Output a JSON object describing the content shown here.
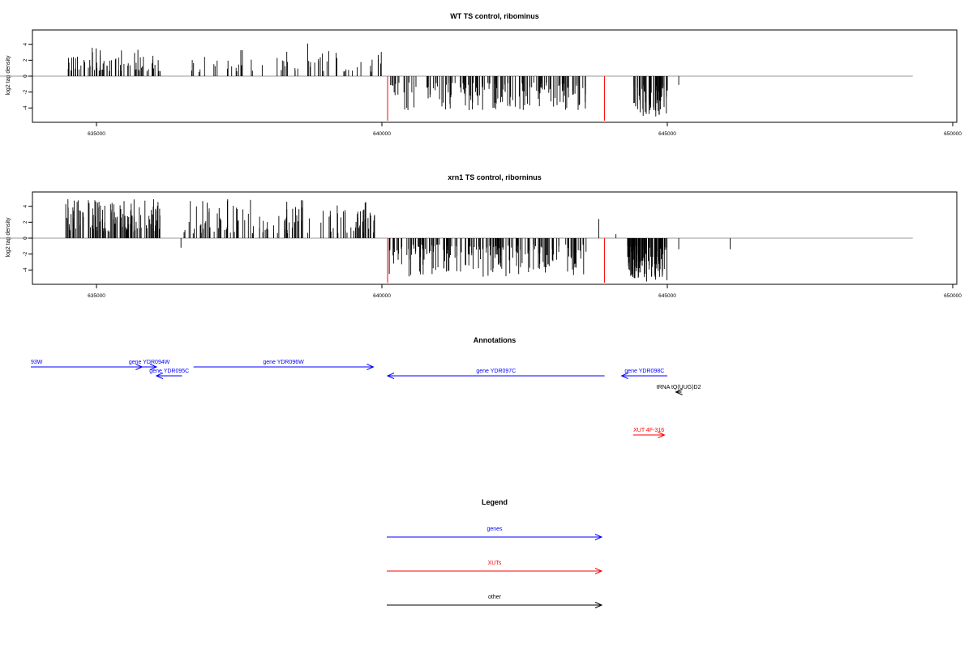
{
  "chart_data": [
    {
      "type": "bar",
      "title": "WT TS control, ribominus",
      "ylabel": "log2 tag density",
      "xlim": [
        633400,
        650100
      ],
      "ylim": [
        -5.8,
        5.8
      ],
      "x_ticks": [
        635000,
        640000,
        645000,
        650000
      ],
      "y_ticks": [
        -4,
        -2,
        0,
        2,
        4
      ],
      "baseline_range": [
        633000,
        649300
      ],
      "seed": 11,
      "positive_segments": [
        {
          "from": 634450,
          "to": 636150,
          "n": 70,
          "min": 0.6,
          "max": 3.6
        },
        {
          "from": 636600,
          "to": 640000,
          "n": 60,
          "min": 0.5,
          "max": 3.3
        }
      ],
      "negative_segments": [
        {
          "from": 640150,
          "to": 643600,
          "n": 160,
          "min": 0.8,
          "max": 4.3
        },
        {
          "from": 644400,
          "to": 645000,
          "n": 70,
          "min": 1.0,
          "max": 5.3
        }
      ],
      "extra_bars": [
        {
          "x": 638700,
          "y": 4.1
        },
        {
          "x": 645200,
          "y": -1.1
        }
      ],
      "highlight_bars": [
        {
          "x": 640100,
          "y": -5.6,
          "color": "#ff0000"
        },
        {
          "x": 643900,
          "y": -5.6,
          "color": "#ff0000"
        }
      ]
    },
    {
      "type": "bar",
      "title": "xrn1 TS control, riborninus",
      "ylabel": "log2 tag density",
      "xlim": [
        633400,
        650100
      ],
      "ylim": [
        -5.8,
        5.8
      ],
      "x_ticks": [
        635000,
        640000,
        645000,
        650000
      ],
      "y_ticks": [
        -4,
        -2,
        0,
        2,
        4
      ],
      "baseline_range": [
        633000,
        649300
      ],
      "seed": 29,
      "positive_segments": [
        {
          "from": 634450,
          "to": 636150,
          "n": 130,
          "min": 0.8,
          "max": 5.0
        },
        {
          "from": 636500,
          "to": 640000,
          "n": 130,
          "min": 0.6,
          "max": 4.9
        }
      ],
      "negative_segments": [
        {
          "from": 640100,
          "to": 643600,
          "n": 200,
          "min": 0.8,
          "max": 4.9
        },
        {
          "from": 644300,
          "to": 645000,
          "n": 120,
          "min": 1.0,
          "max": 5.5
        }
      ],
      "extra_bars": [
        {
          "x": 636480,
          "y": -1.2
        },
        {
          "x": 643800,
          "y": 2.4
        },
        {
          "x": 644100,
          "y": 0.5
        },
        {
          "x": 645200,
          "y": -1.4
        },
        {
          "x": 646100,
          "y": -1.4
        }
      ],
      "highlight_bars": [
        {
          "x": 640100,
          "y": -5.6,
          "color": "#ff0000"
        },
        {
          "x": 643900,
          "y": -5.6,
          "color": "#ff0000"
        }
      ]
    }
  ],
  "annotations": {
    "title": "Annotations",
    "items": [
      {
        "label": "93W",
        "from": 633000,
        "to": 635800,
        "row": 0,
        "dir": "right",
        "color": "#0000ff"
      },
      {
        "label": "gene YDR094W",
        "from": 635800,
        "to": 636050,
        "row": 0,
        "dir": "right",
        "color": "#0000ff"
      },
      {
        "label": "gene YDR095C",
        "from": 636050,
        "to": 636500,
        "row": 1,
        "dir": "left",
        "color": "#0000ff"
      },
      {
        "label": "gene YDR096W",
        "from": 636700,
        "to": 639850,
        "row": 0,
        "dir": "right",
        "color": "#0000ff"
      },
      {
        "label": "gene YDR097C",
        "from": 640100,
        "to": 643900,
        "row": 2,
        "dir": "left",
        "color": "#0000ff"
      },
      {
        "label": "gene YDR098C",
        "from": 644200,
        "to": 645000,
        "row": 2,
        "dir": "left",
        "color": "#0000ff"
      },
      {
        "label": "tRNA tQ(UUG)D2",
        "from": 645150,
        "to": 645250,
        "row": 3,
        "dir": "left",
        "color": "#000000"
      },
      {
        "label": "XUT 4F-316",
        "from": 644400,
        "to": 644950,
        "row": 4,
        "dir": "right",
        "color": "#ff0000"
      }
    ]
  },
  "legend": {
    "title": "Legend",
    "items": [
      {
        "label": "genes",
        "color": "#0000ff"
      },
      {
        "label": "XUTs",
        "color": "#ff0000"
      },
      {
        "label": "other",
        "color": "#000000"
      }
    ]
  }
}
